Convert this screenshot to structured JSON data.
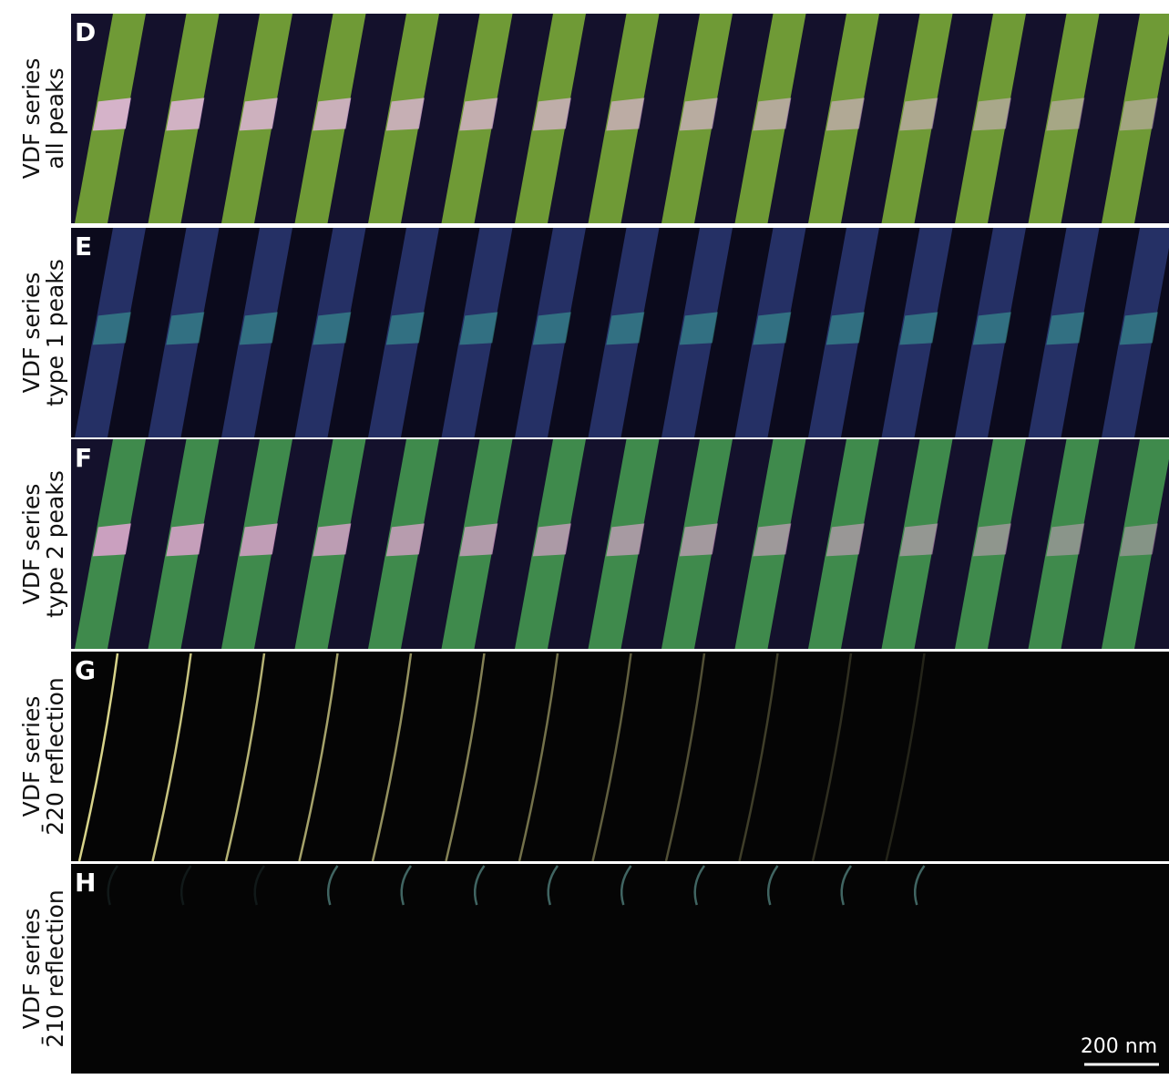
{
  "panels": [
    {
      "letter": "D",
      "label_lines": [
        "VDF series",
        "all peaks"
      ]
    },
    {
      "letter": "E",
      "label_lines": [
        "VDF series",
        "type 1 peaks"
      ]
    },
    {
      "letter": "F",
      "label_lines": [
        "VDF series",
        "type 2 peaks"
      ]
    },
    {
      "letter": "G",
      "label_lines": [
        "VDF series",
        "2̄20 reflection"
      ]
    },
    {
      "letter": "H",
      "label_lines": [
        "VDF series",
        "2̄10 reflection"
      ]
    }
  ],
  "scale_bar": {
    "label": "200 nm"
  }
}
